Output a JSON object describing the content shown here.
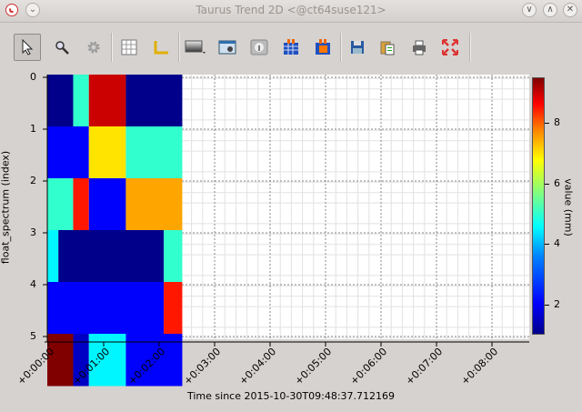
{
  "window": {
    "title": "Taurus Trend 2D <@ct64suse121>"
  },
  "toolbar": {
    "items": [
      "pointer-icon",
      "zoom-icon",
      "settings-icon",
      "grid-icon",
      "axis-icon",
      "colormap-icon",
      "image-icon",
      "info-icon",
      "matrix-icon",
      "matrix2-icon",
      "save-icon",
      "copy-icon",
      "print-icon",
      "fullscreen-icon"
    ]
  },
  "plot": {
    "ylabel": "float_spectrum (index)",
    "xlabel": "Time since 2015-10-30T09:48:37.712169",
    "colorbar_label": "value (mm)",
    "yticks": [
      "0",
      "1",
      "2",
      "3",
      "4",
      "5"
    ],
    "xticks": [
      "+0:00:00",
      "+0:01:00",
      "+0:02:00",
      "+0:03:00",
      "+0:04:00",
      "+0:05:00",
      "+0:06:00",
      "+0:07:00",
      "+0:08:00"
    ],
    "cbar_ticks": [
      "8",
      "6",
      "4",
      "2"
    ]
  },
  "chart_data": {
    "type": "heatmap",
    "xlabel": "Time since 2015-10-30T09:48:37.712169",
    "ylabel": "float_spectrum (index)",
    "colorbar_label": "value (mm)",
    "colorbar_range": [
      1,
      9.5
    ],
    "colormap": "jet",
    "rows": [
      {
        "index": 0,
        "segments": [
          {
            "t0": 0,
            "t1": 28,
            "value": 1
          },
          {
            "t0": 28,
            "t1": 45,
            "value": 5
          },
          {
            "t0": 45,
            "t1": 85,
            "value": 9
          },
          {
            "t0": 85,
            "t1": 146,
            "value": 1
          }
        ]
      },
      {
        "index": 1,
        "segments": [
          {
            "t0": 0,
            "t1": 45,
            "value": 2
          },
          {
            "t0": 45,
            "t1": 85,
            "value": 7
          },
          {
            "t0": 85,
            "t1": 146,
            "value": 5
          }
        ]
      },
      {
        "index": 2,
        "segments": [
          {
            "t0": 0,
            "t1": 28,
            "value": 5
          },
          {
            "t0": 28,
            "t1": 45,
            "value": 8.5
          },
          {
            "t0": 45,
            "t1": 85,
            "value": 2
          },
          {
            "t0": 85,
            "t1": 146,
            "value": 7.5
          }
        ]
      },
      {
        "index": 3,
        "segments": [
          {
            "t0": 0,
            "t1": 12,
            "value": 4.5
          },
          {
            "t0": 12,
            "t1": 126,
            "value": 1
          },
          {
            "t0": 126,
            "t1": 146,
            "value": 5
          }
        ]
      },
      {
        "index": 4,
        "segments": [
          {
            "t0": 0,
            "t1": 126,
            "value": 2
          },
          {
            "t0": 126,
            "t1": 146,
            "value": 8.5
          }
        ]
      },
      {
        "index": 5,
        "segments": [
          {
            "t0": 0,
            "t1": 28,
            "value": 9.5
          },
          {
            "t0": 28,
            "t1": 45,
            "value": 1.5
          },
          {
            "t0": 45,
            "t1": 85,
            "value": 4.5
          },
          {
            "t0": 85,
            "t1": 146,
            "value": 2
          }
        ]
      }
    ]
  }
}
